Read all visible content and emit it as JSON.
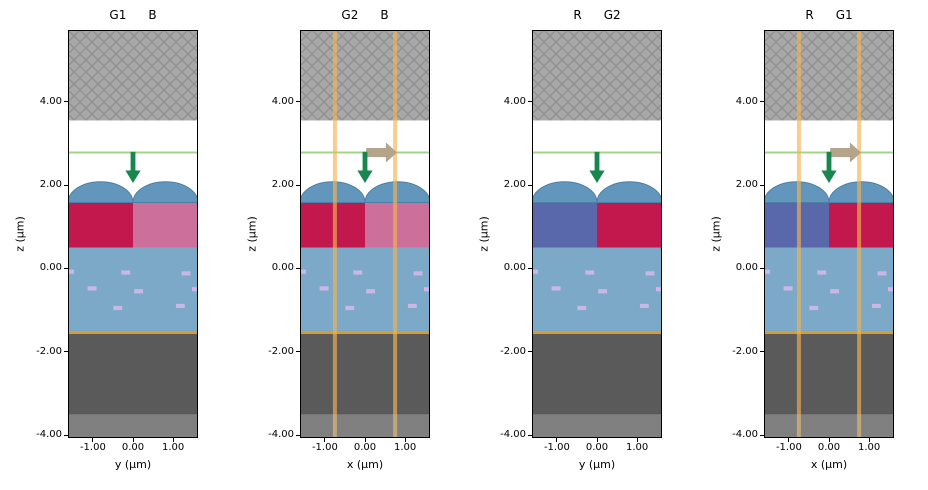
{
  "chart_data": {
    "type": "schematic",
    "description": "Four cross-section schematic views of image-sensor pixels (hatched cap layer, microlenses, color filters, silicon with implants, substrate) with incident-light arrows and vertical ray lines",
    "ylabel": "z (µm)",
    "z_ticks": {
      "labels": [
        "4.00",
        "2.00",
        "0.00",
        "-2.00",
        "-4.00"
      ],
      "values": [
        4,
        2,
        0,
        -2,
        -4
      ]
    },
    "x_ticks": {
      "labels": [
        "-1.00",
        "0.00",
        "1.00"
      ],
      "values": [
        -1,
        0,
        1
      ]
    },
    "x_range": [
      -1.62,
      1.62
    ],
    "z_range": [
      -4.07,
      5.72
    ],
    "panels": [
      {
        "title_left": "G1",
        "title_right": "B",
        "xlabel": "y (µm)",
        "filter_left": "red",
        "filter_right": "pink",
        "rays": false,
        "right_arrow": false
      },
      {
        "title_left": "G2",
        "title_right": "B",
        "xlabel": "x (µm)",
        "filter_left": "red",
        "filter_right": "pink",
        "rays": true,
        "right_arrow": true
      },
      {
        "title_left": "R",
        "title_right": "G2",
        "xlabel": "y (µm)",
        "filter_left": "blue",
        "filter_right": "red",
        "rays": false,
        "right_arrow": false
      },
      {
        "title_left": "R",
        "title_right": "G1",
        "xlabel": "x (µm)",
        "filter_left": "blue",
        "filter_right": "red",
        "rays": true,
        "right_arrow": true
      }
    ],
    "geometry": {
      "hatch_region": {
        "z0": 3.55,
        "z1": 5.72
      },
      "green_line_z": 2.78,
      "down_arrow": {
        "x": 0,
        "z_top": 2.8,
        "z_tip": 2.05,
        "shaft_hw": 0.06,
        "head_hw": 0.19,
        "head_len": 0.3
      },
      "right_arrow": {
        "z": 2.78,
        "x_start": 0.03,
        "x_tip": 0.8,
        "shaft_hw": 0.11,
        "head_hw": 0.24,
        "head_len": 0.28
      },
      "lens": {
        "base_z": 1.58,
        "rx": 0.81,
        "ry": 0.5,
        "centers": [
          -0.81,
          0.81
        ]
      },
      "filter": {
        "z0": 0.5,
        "z1": 1.58
      },
      "silicon": {
        "z0": -1.52,
        "z1": 0.5
      },
      "orange_line_z": -1.54,
      "substrate": {
        "z0": -4.07,
        "z1": -1.56
      },
      "bottom_overlay": {
        "z0": -4.07,
        "z1": -3.5
      },
      "ray_x": [
        -0.75,
        0.75
      ],
      "dashes": [
        [
          -1.58,
          -0.08
        ],
        [
          -0.18,
          -0.1
        ],
        [
          1.32,
          -0.12
        ],
        [
          -1.02,
          -0.48
        ],
        [
          0.14,
          -0.55
        ],
        [
          1.58,
          -0.5
        ],
        [
          -0.38,
          -0.95
        ],
        [
          1.18,
          -0.9
        ]
      ],
      "dash_w": 0.22,
      "dash_h": 0.1
    },
    "colors": {
      "hatch_bg": "#a8a8a8",
      "hatch_line": "#8e8e8e",
      "lens": "#6396bd",
      "lens_edge": "#4d7fa6",
      "silicon": "#7ca9c8",
      "red": "#c2184e",
      "pink": "#cd6f9b",
      "blue": "#5967ab",
      "substrate": "#5a5a5a",
      "overlay": "rgba(200,200,200,0.35)",
      "orange": "#dd9a2f",
      "ray": "rgba(243,179,80,0.65)",
      "green_line": "#a2d687",
      "green_arrow": "#17874f",
      "tan_arrow": "#b3a48b",
      "dash": "#cbb7e6"
    }
  }
}
